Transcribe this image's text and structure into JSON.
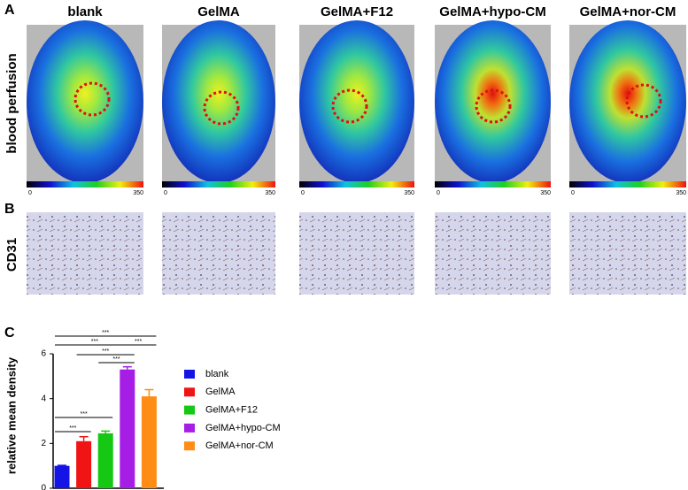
{
  "panels": [
    "A",
    "B",
    "C"
  ],
  "columns": [
    "blank",
    "GelMA",
    "GelMA+F12",
    "GelMA+hypo-CM",
    "GelMA+nor-CM"
  ],
  "row_labels": [
    "blood perfusion",
    "CD31"
  ],
  "perfusion_scale": {
    "min_label": "0",
    "max_label": "350"
  },
  "chart_data": {
    "type": "bar",
    "ylabel": "relative mean density",
    "categories": [
      "blank",
      "GelMA",
      "GelMA+F12",
      "GelMA+hypo-CM",
      "GelMA+nor-CM"
    ],
    "values": [
      1.0,
      2.1,
      2.45,
      5.3,
      4.1
    ],
    "errors": [
      0.02,
      0.2,
      0.1,
      0.12,
      0.3
    ],
    "colors": [
      "#1414e6",
      "#f01414",
      "#14c814",
      "#a61ee6",
      "#ff8c14"
    ],
    "ylim": [
      0,
      6
    ],
    "yticks": [
      0,
      2,
      4,
      6
    ],
    "annotations": [
      "***",
      "***",
      "***",
      "***",
      "***",
      "***",
      "***"
    ]
  }
}
